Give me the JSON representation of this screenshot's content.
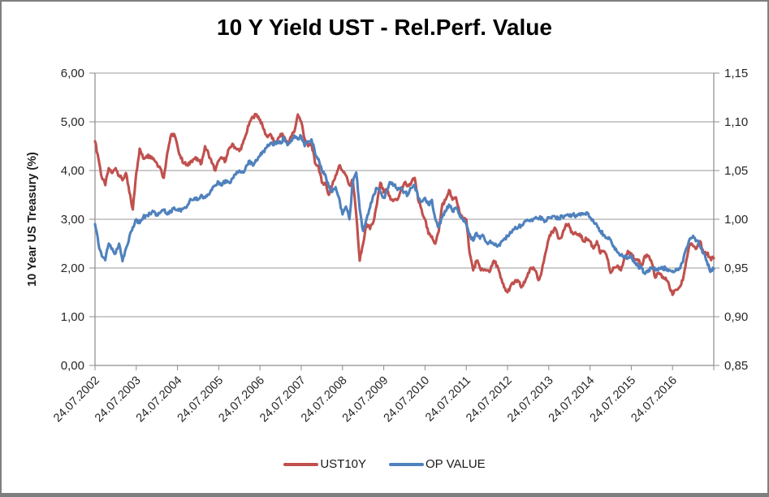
{
  "chart_title": "10 Y Yield UST - Rel.Perf. Value",
  "colors": {
    "ust10y_red": "#C0504D",
    "op_value_blue": "#4F81BD",
    "gridline": "#999999",
    "axis_line": "#8C8C8C",
    "tick_text": "#262626",
    "frame_border": "#7F7F7F",
    "background": "#FFFFFF"
  },
  "chart_data": {
    "type": "line",
    "title": "10 Y Yield UST - Rel.Perf. Value",
    "grid": "horizontal-major",
    "legend_position": "bottom",
    "y_left": {
      "label": "10 Year US Treasury (%)",
      "min": 0,
      "max": 6,
      "tick_labels": [
        "0,00",
        "1,00",
        "2,00",
        "3,00",
        "4,00",
        "5,00",
        "6,00"
      ]
    },
    "y_right": {
      "label": "",
      "min": 0.85,
      "max": 1.15,
      "tick_labels": [
        "0,85",
        "0,90",
        "0,95",
        "1,00",
        "1,05",
        "1,10",
        "1,15"
      ]
    },
    "x": {
      "start": "24.07.2002",
      "end": "24.07.2017",
      "sampling": "monthly",
      "tick_labels": [
        "24.07.2002",
        "24.07.2003",
        "24.07.2004",
        "24.07.2005",
        "24.07.2006",
        "24.07.2007",
        "24.07.2008",
        "24.07.2009",
        "24.07.2010",
        "24.07.2011",
        "24.07.2012",
        "24.07.2013",
        "24.07.2014",
        "24.07.2015",
        "24.07.2016"
      ],
      "year_ticks_including_unlabeled_right_edge": 16
    },
    "series": [
      {
        "name": "UST10Y",
        "axis": "left",
        "color": "#C0504D",
        "values": [
          4.6,
          4.25,
          3.85,
          3.7,
          4.05,
          3.95,
          4.05,
          3.9,
          3.8,
          3.95,
          3.55,
          3.2,
          3.95,
          4.45,
          4.25,
          4.3,
          4.3,
          4.25,
          4.15,
          4.05,
          3.85,
          4.35,
          4.7,
          4.75,
          4.5,
          4.25,
          4.15,
          4.1,
          4.2,
          4.25,
          4.2,
          4.15,
          4.5,
          4.35,
          4.15,
          4.0,
          4.2,
          4.25,
          4.2,
          4.45,
          4.55,
          4.45,
          4.4,
          4.55,
          4.75,
          5.0,
          5.1,
          5.15,
          5.05,
          4.85,
          4.7,
          4.75,
          4.6,
          4.6,
          4.75,
          4.7,
          4.55,
          4.7,
          4.8,
          5.15,
          5.0,
          4.65,
          4.5,
          4.55,
          4.15,
          4.1,
          3.75,
          3.75,
          3.5,
          3.7,
          3.9,
          4.1,
          4.0,
          3.9,
          3.7,
          3.8,
          3.1,
          2.15,
          2.5,
          2.9,
          2.8,
          2.95,
          3.3,
          3.75,
          3.55,
          3.6,
          3.4,
          3.4,
          3.4,
          3.6,
          3.75,
          3.7,
          3.75,
          3.85,
          3.4,
          3.2,
          3.0,
          2.7,
          2.65,
          2.5,
          2.75,
          3.3,
          3.4,
          3.6,
          3.4,
          3.45,
          3.15,
          3.0,
          3.0,
          2.3,
          1.95,
          2.15,
          2.0,
          1.95,
          1.95,
          1.95,
          2.15,
          2.05,
          1.8,
          1.6,
          1.5,
          1.65,
          1.7,
          1.75,
          1.6,
          1.7,
          1.9,
          2.0,
          1.95,
          1.75,
          1.95,
          2.3,
          2.6,
          2.75,
          2.8,
          2.6,
          2.7,
          2.9,
          2.85,
          2.7,
          2.7,
          2.7,
          2.55,
          2.6,
          2.55,
          2.4,
          2.55,
          2.3,
          2.35,
          2.2,
          1.9,
          2.0,
          2.05,
          1.95,
          2.2,
          2.35,
          2.3,
          2.15,
          2.15,
          2.05,
          2.25,
          2.25,
          2.1,
          1.8,
          1.9,
          1.8,
          1.8,
          1.65,
          1.45,
          1.55,
          1.6,
          1.75,
          2.15,
          2.5,
          2.45,
          2.4,
          2.55,
          2.3,
          2.3,
          2.2,
          2.2
        ]
      },
      {
        "name": "OP VALUE",
        "axis": "right",
        "color": "#4F81BD",
        "values": [
          0.995,
          0.975,
          0.962,
          0.958,
          0.975,
          0.97,
          0.965,
          0.975,
          0.957,
          0.97,
          0.982,
          0.992,
          1.0,
          0.996,
          1.002,
          1.004,
          1.006,
          1.008,
          1.005,
          1.007,
          1.01,
          1.005,
          1.008,
          1.012,
          1.01,
          1.008,
          1.012,
          1.015,
          1.02,
          1.022,
          1.02,
          1.025,
          1.022,
          1.025,
          1.03,
          1.035,
          1.038,
          1.035,
          1.04,
          1.038,
          1.042,
          1.046,
          1.05,
          1.048,
          1.055,
          1.06,
          1.055,
          1.06,
          1.065,
          1.07,
          1.074,
          1.078,
          1.076,
          1.08,
          1.078,
          1.084,
          1.076,
          1.081,
          1.086,
          1.082,
          1.085,
          1.075,
          1.079,
          1.082,
          1.068,
          1.062,
          1.05,
          1.046,
          1.033,
          1.028,
          1.033,
          1.022,
          1.005,
          1.013,
          1.0,
          1.038,
          1.048,
          1.01,
          0.988,
          1.0,
          1.012,
          1.025,
          1.032,
          1.028,
          1.022,
          1.03,
          1.038,
          1.035,
          1.03,
          1.032,
          1.028,
          1.025,
          1.032,
          1.035,
          1.022,
          1.018,
          1.022,
          1.015,
          1.02,
          1.0,
          0.992,
          1.002,
          1.008,
          1.015,
          1.008,
          1.012,
          1.005,
          1.0,
          0.995,
          0.985,
          0.978,
          0.986,
          0.98,
          0.983,
          0.976,
          0.978,
          0.974,
          0.972,
          0.976,
          0.98,
          0.983,
          0.986,
          0.99,
          0.991,
          0.994,
          0.998,
          0.999,
          1.0,
          1.001,
          1.0,
          1.002,
          0.998,
          1.002,
          1.003,
          1.002,
          1.001,
          1.003,
          1.004,
          1.003,
          1.005,
          1.004,
          1.006,
          1.005,
          1.007,
          1.002,
          0.998,
          0.994,
          0.988,
          0.984,
          0.981,
          0.979,
          0.972,
          0.966,
          0.963,
          0.962,
          0.96,
          0.963,
          0.955,
          0.952,
          0.95,
          0.944,
          0.948,
          0.95,
          0.948,
          0.95,
          0.949,
          0.95,
          0.948,
          0.947,
          0.949,
          0.95,
          0.956,
          0.97,
          0.98,
          0.983,
          0.978,
          0.973,
          0.965,
          0.957,
          0.946,
          0.949
        ]
      }
    ]
  },
  "legend": {
    "items": [
      {
        "label": "UST10Y",
        "color": "#C0504D"
      },
      {
        "label": "OP VALUE",
        "color": "#4F81BD"
      }
    ]
  }
}
